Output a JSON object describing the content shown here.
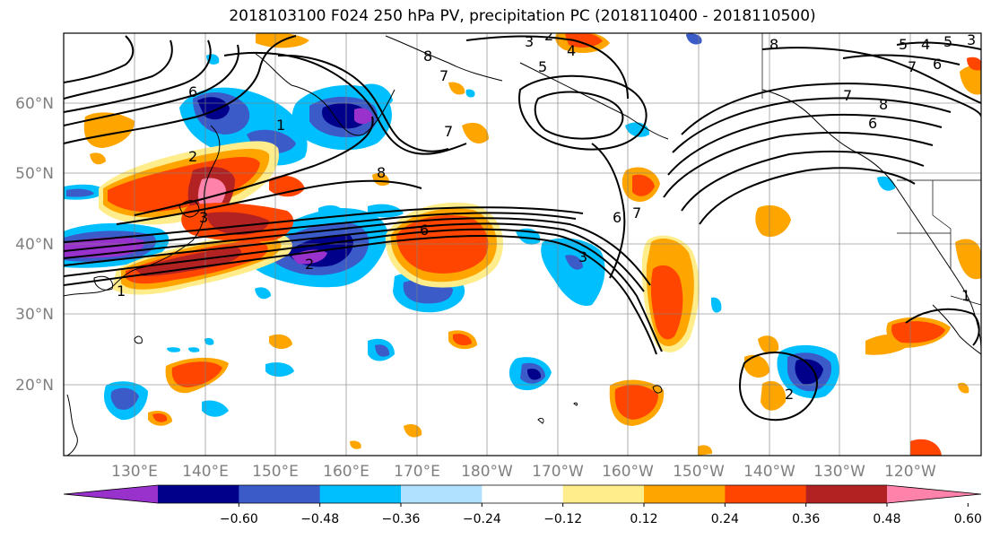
{
  "title": "2018103100 F024 250 hPa PV, precipitation PC (2018110400 - 2018110500)",
  "lat_labels": [
    "60°N",
    "50°N",
    "40°N",
    "30°N",
    "20°N"
  ],
  "lon_labels": [
    "130°E",
    "140°E",
    "150°E",
    "160°E",
    "170°E",
    "180°W",
    "170°W",
    "160°W",
    "150°W",
    "140°W",
    "130°W",
    "120°W"
  ],
  "colorbar": {
    "colors": [
      "#9932CC",
      "#00008B",
      "#3A5BC8",
      "#00BFFF",
      "#B0E2FF",
      "#FFFFFF",
      "#FFEC8B",
      "#FFA500",
      "#FF4500",
      "#B22222",
      "#FF82AB"
    ],
    "labels": [
      "−0.60",
      "−0.48",
      "−0.36",
      "−0.24",
      "−0.12",
      "0.12",
      "0.24",
      "0.36",
      "0.48",
      "0.60"
    ]
  },
  "contour_labels": [
    "1",
    "2",
    "3",
    "4",
    "5",
    "6",
    "7",
    "8",
    "6",
    "7",
    "8",
    "5",
    "4",
    "3",
    "2",
    "1",
    "2",
    "3",
    "6",
    "7",
    "8",
    "7",
    "6",
    "5",
    "6",
    "7",
    "8",
    "3",
    "2",
    "1"
  ]
}
